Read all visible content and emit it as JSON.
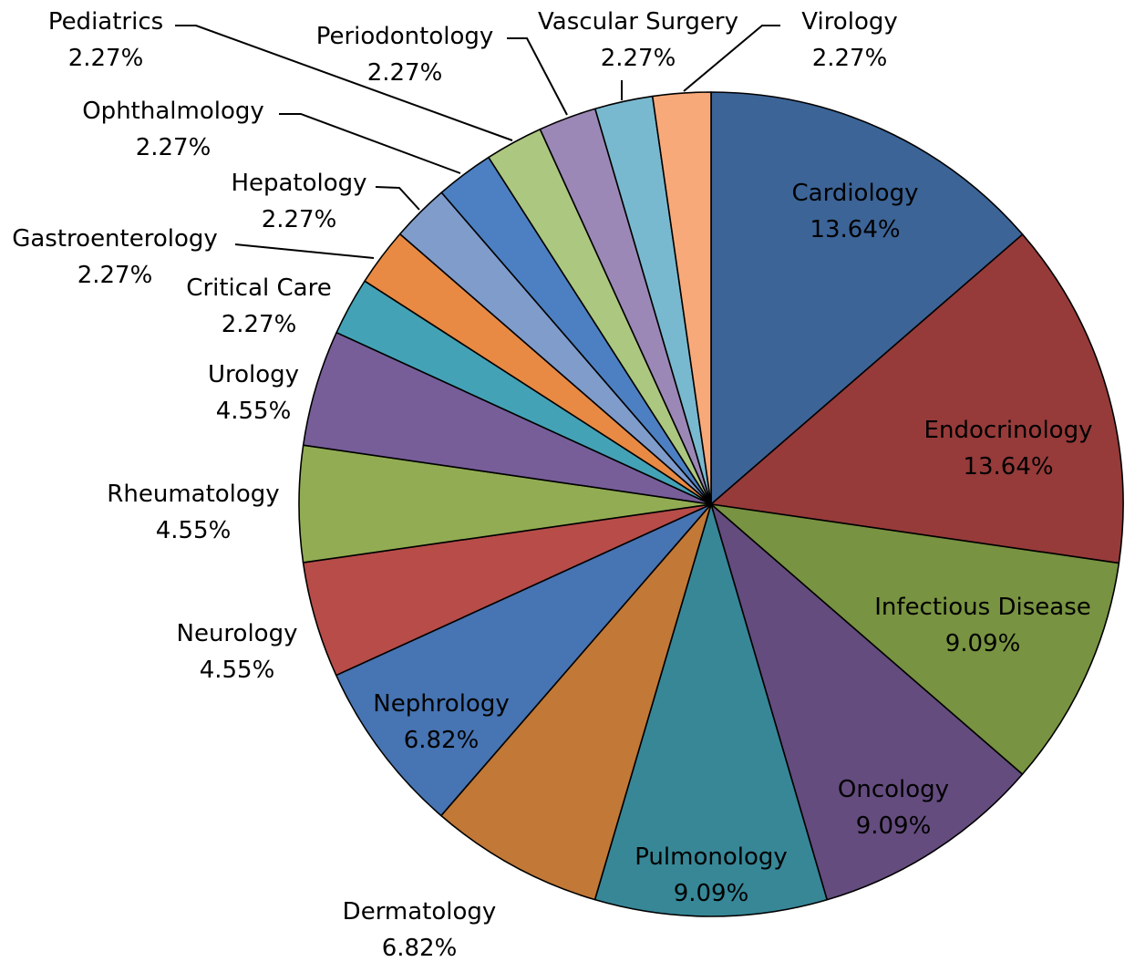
{
  "chart_data": {
    "type": "pie",
    "title": "",
    "start_angle_deg": 0,
    "direction": "clockwise",
    "slices": [
      {
        "label": "Cardiology",
        "value": 13.64,
        "value_label": "13.64%",
        "color": "#3C6497"
      },
      {
        "label": "Endocrinology",
        "value": 13.64,
        "value_label": "13.64%",
        "color": "#963B3A"
      },
      {
        "label": "Infectious Disease",
        "value": 9.09,
        "value_label": "9.09%",
        "color": "#789341"
      },
      {
        "label": "Oncology",
        "value": 9.09,
        "value_label": "9.09%",
        "color": "#644C7E"
      },
      {
        "label": "Pulmonology",
        "value": 9.09,
        "value_label": "9.09%",
        "color": "#378797"
      },
      {
        "label": "Dermatology",
        "value": 6.82,
        "value_label": "6.82%",
        "color": "#C27836"
      },
      {
        "label": "Nephrology",
        "value": 6.82,
        "value_label": "6.82%",
        "color": "#4774B2"
      },
      {
        "label": "Neurology",
        "value": 4.55,
        "value_label": "4.55%",
        "color": "#B74C49"
      },
      {
        "label": "Rheumatology",
        "value": 4.55,
        "value_label": "4.55%",
        "color": "#92AC53"
      },
      {
        "label": "Urology",
        "value": 4.55,
        "value_label": "4.55%",
        "color": "#775E99"
      },
      {
        "label": "Critical Care",
        "value": 2.27,
        "value_label": "2.27%",
        "color": "#44A2B6"
      },
      {
        "label": "Gastroenterology",
        "value": 2.27,
        "value_label": "2.27%",
        "color": "#E88A43"
      },
      {
        "label": "Hepatology",
        "value": 2.27,
        "value_label": "2.27%",
        "color": "#7F9CCB"
      },
      {
        "label": "Ophthalmology",
        "value": 2.27,
        "value_label": "2.27%",
        "color": "#4C80C2"
      },
      {
        "label": "Pediatrics",
        "value": 2.27,
        "value_label": "2.27%",
        "color": "#ACC77F"
      },
      {
        "label": "Periodontology",
        "value": 2.27,
        "value_label": "2.27%",
        "color": "#9C88B6"
      },
      {
        "label": "Vascular Surgery",
        "value": 2.27,
        "value_label": "2.27%",
        "color": "#79B9CF"
      },
      {
        "label": "Virology",
        "value": 2.27,
        "value_label": "2.27%",
        "color": "#F8A97A"
      }
    ]
  }
}
